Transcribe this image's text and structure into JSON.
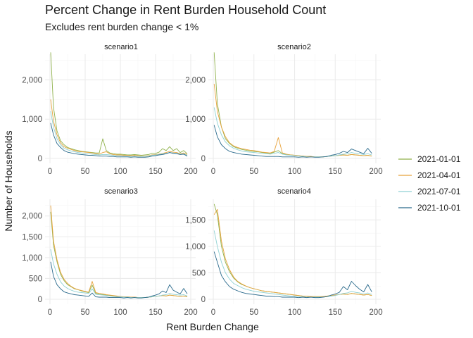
{
  "chart_data": {
    "type": "line",
    "title": "Percent Change in Rent Burden Household Count",
    "subtitle": "Excludes rent burden change < 1%",
    "xlabel": "Rent Burden Change",
    "ylabel": "Number of Households",
    "xlim": [
      0,
      200
    ],
    "x_ticks": [
      0,
      50,
      100,
      150,
      200
    ],
    "grid": true,
    "legend_position": "right",
    "series_colors": {
      "2021-01-01": "#8fb14b",
      "2021-04-01": "#e8a23a",
      "2021-07-01": "#8fd1d3",
      "2021-10-01": "#2a6a8c"
    },
    "series_names": [
      "2021-01-01",
      "2021-04-01",
      "2021-07-01",
      "2021-10-01"
    ],
    "x": [
      1,
      5,
      10,
      15,
      20,
      25,
      30,
      35,
      40,
      45,
      50,
      55,
      60,
      65,
      70,
      75,
      80,
      85,
      90,
      95,
      100,
      105,
      110,
      115,
      120,
      125,
      130,
      135,
      140,
      145,
      150,
      155,
      160,
      165,
      170,
      175,
      180,
      185,
      190,
      195
    ],
    "panels": [
      {
        "name": "scenario1",
        "ylim": [
          0,
          2600
        ],
        "y_ticks": [
          0,
          1000,
          2000
        ],
        "y_tick_labels": [
          "0",
          "1,000",
          "2,000"
        ],
        "series": [
          {
            "name": "2021-01-01",
            "values": [
              2700,
              1300,
              700,
              450,
              350,
              280,
              250,
              220,
              200,
              180,
              170,
              160,
              150,
              140,
              140,
              500,
              200,
              140,
              120,
              110,
              110,
              100,
              90,
              90,
              100,
              90,
              80,
              90,
              100,
              130,
              130,
              160,
              250,
              200,
              300,
              200,
              250,
              150,
              200,
              120
            ]
          },
          {
            "name": "2021-04-01",
            "values": [
              1500,
              950,
              600,
              400,
              300,
              260,
              230,
              200,
              180,
              170,
              160,
              150,
              140,
              120,
              110,
              150,
              170,
              120,
              100,
              90,
              90,
              80,
              80,
              70,
              80,
              70,
              60,
              60,
              70,
              90,
              100,
              110,
              130,
              150,
              180,
              160,
              150,
              120,
              140,
              100
            ]
          },
          {
            "name": "2021-07-01",
            "values": [
              1200,
              800,
              500,
              350,
              260,
              220,
              190,
              170,
              150,
              140,
              130,
              120,
              110,
              100,
              90,
              100,
              100,
              90,
              80,
              70,
              70,
              60,
              60,
              50,
              60,
              50,
              50,
              50,
              60,
              80,
              90,
              100,
              120,
              130,
              150,
              140,
              130,
              110,
              120,
              80
            ]
          },
          {
            "name": "2021-10-01",
            "values": [
              900,
              600,
              380,
              280,
              200,
              160,
              140,
              120,
              110,
              100,
              90,
              80,
              80,
              70,
              60,
              60,
              60,
              50,
              50,
              40,
              40,
              40,
              40,
              30,
              40,
              30,
              30,
              30,
              40,
              60,
              70,
              90,
              100,
              120,
              150,
              130,
              120,
              100,
              110,
              60
            ]
          }
        ]
      },
      {
        "name": "scenario2",
        "ylim": [
          0,
          2600
        ],
        "y_ticks": [
          0,
          1000,
          2000
        ],
        "y_tick_labels": [
          "0",
          "1,000",
          "2,000"
        ],
        "series": [
          {
            "name": "2021-01-01",
            "values": [
              2700,
              1400,
              800,
              500,
              380,
              300,
              260,
              230,
              210,
              190,
              180,
              170,
              150,
              140,
              130,
              160,
              200,
              120,
              100,
              90,
              80,
              70,
              60,
              50,
              50,
              40,
              40,
              40,
              50,
              60,
              70,
              80,
              90,
              80,
              100,
              90,
              80,
              70,
              80,
              60
            ]
          },
          {
            "name": "2021-04-01",
            "values": [
              1900,
              1200,
              800,
              550,
              400,
              320,
              280,
              250,
              230,
              210,
              200,
              180,
              160,
              150,
              140,
              180,
              530,
              140,
              110,
              90,
              80,
              70,
              60,
              50,
              50,
              40,
              40,
              40,
              50,
              60,
              70,
              80,
              90,
              80,
              100,
              90,
              80,
              70,
              80,
              60
            ]
          },
          {
            "name": "2021-07-01",
            "values": [
              1300,
              900,
              600,
              420,
              320,
              260,
              220,
              190,
              170,
              160,
              150,
              140,
              130,
              120,
              110,
              130,
              150,
              110,
              90,
              80,
              70,
              60,
              50,
              40,
              40,
              40,
              40,
              40,
              50,
              60,
              70,
              90,
              110,
              120,
              150,
              130,
              120,
              100,
              120,
              90
            ]
          },
          {
            "name": "2021-10-01",
            "values": [
              850,
              550,
              350,
              250,
              180,
              150,
              130,
              110,
              100,
              90,
              80,
              70,
              60,
              50,
              50,
              50,
              50,
              40,
              40,
              40,
              40,
              30,
              40,
              30,
              40,
              30,
              30,
              40,
              50,
              80,
              100,
              130,
              180,
              150,
              240,
              200,
              160,
              120,
              260,
              130
            ]
          }
        ]
      },
      {
        "name": "scenario3",
        "ylim": [
          0,
          2350
        ],
        "y_ticks": [
          0,
          500,
          1000,
          1500,
          2000
        ],
        "y_tick_labels": [
          "0",
          "500",
          "1,000",
          "1,500",
          "2,000"
        ],
        "series": [
          {
            "name": "2021-01-01",
            "values": [
              2100,
              1300,
              900,
              600,
              450,
              350,
              300,
              250,
              230,
              200,
              180,
              160,
              340,
              140,
              120,
              110,
              100,
              90,
              80,
              70,
              60,
              60,
              50,
              50,
              50,
              40,
              40,
              40,
              50,
              60,
              70,
              80,
              90,
              80,
              100,
              90,
              80,
              70,
              80,
              60
            ]
          },
          {
            "name": "2021-04-01",
            "values": [
              2250,
              1400,
              950,
              650,
              480,
              380,
              310,
              260,
              230,
              210,
              190,
              170,
              430,
              160,
              140,
              130,
              110,
              100,
              90,
              80,
              70,
              60,
              60,
              50,
              50,
              40,
              40,
              40,
              50,
              60,
              70,
              80,
              90,
              80,
              100,
              90,
              80,
              70,
              80,
              60
            ]
          },
          {
            "name": "2021-07-01",
            "values": [
              1200,
              850,
              600,
              420,
              320,
              260,
              220,
              190,
              170,
              160,
              150,
              140,
              250,
              120,
              110,
              100,
              90,
              80,
              70,
              60,
              60,
              50,
              50,
              40,
              40,
              40,
              40,
              40,
              50,
              60,
              70,
              80,
              100,
              110,
              140,
              120,
              110,
              100,
              110,
              80
            ]
          },
          {
            "name": "2021-10-01",
            "values": [
              900,
              550,
              350,
              250,
              180,
              150,
              130,
              110,
              100,
              90,
              80,
              70,
              150,
              60,
              50,
              50,
              50,
              40,
              40,
              40,
              40,
              30,
              40,
              30,
              40,
              30,
              30,
              40,
              50,
              80,
              100,
              130,
              200,
              160,
              350,
              220,
              170,
              130,
              260,
              130
            ]
          }
        ]
      },
      {
        "name": "scenario4",
        "ylim": [
          0,
          1850
        ],
        "y_ticks": [
          0,
          500,
          1000,
          1500
        ],
        "y_tick_labels": [
          "0",
          "500",
          "1,000",
          "1,500"
        ],
        "series": [
          {
            "name": "2021-01-01",
            "values": [
              1800,
              1600,
              1000,
              700,
              520,
              400,
              330,
              280,
              250,
              220,
              200,
              180,
              160,
              150,
              140,
              130,
              120,
              110,
              100,
              90,
              80,
              70,
              60,
              60,
              50,
              50,
              50,
              50,
              60,
              70,
              80,
              90,
              100,
              90,
              110,
              100,
              90,
              80,
              90,
              70
            ]
          },
          {
            "name": "2021-04-01",
            "values": [
              1600,
              1700,
              1100,
              760,
              560,
              420,
              340,
              290,
              250,
              220,
              200,
              180,
              160,
              150,
              140,
              130,
              120,
              110,
              100,
              90,
              80,
              70,
              60,
              60,
              50,
              50,
              50,
              50,
              60,
              70,
              80,
              90,
              100,
              90,
              110,
              100,
              90,
              80,
              90,
              70
            ]
          },
          {
            "name": "2021-07-01",
            "values": [
              1300,
              1000,
              700,
              500,
              380,
              300,
              260,
              220,
              190,
              170,
              150,
              140,
              130,
              120,
              110,
              100,
              90,
              80,
              70,
              60,
              60,
              50,
              50,
              40,
              40,
              40,
              40,
              40,
              50,
              60,
              70,
              90,
              110,
              120,
              150,
              130,
              120,
              100,
              120,
              90
            ]
          },
          {
            "name": "2021-10-01",
            "values": [
              900,
              700,
              450,
              330,
              240,
              190,
              160,
              130,
              110,
              100,
              90,
              80,
              70,
              60,
              60,
              50,
              50,
              40,
              40,
              40,
              40,
              30,
              40,
              30,
              40,
              30,
              30,
              40,
              50,
              80,
              100,
              130,
              240,
              180,
              340,
              260,
              190,
              140,
              280,
              140
            ]
          }
        ]
      }
    ]
  }
}
